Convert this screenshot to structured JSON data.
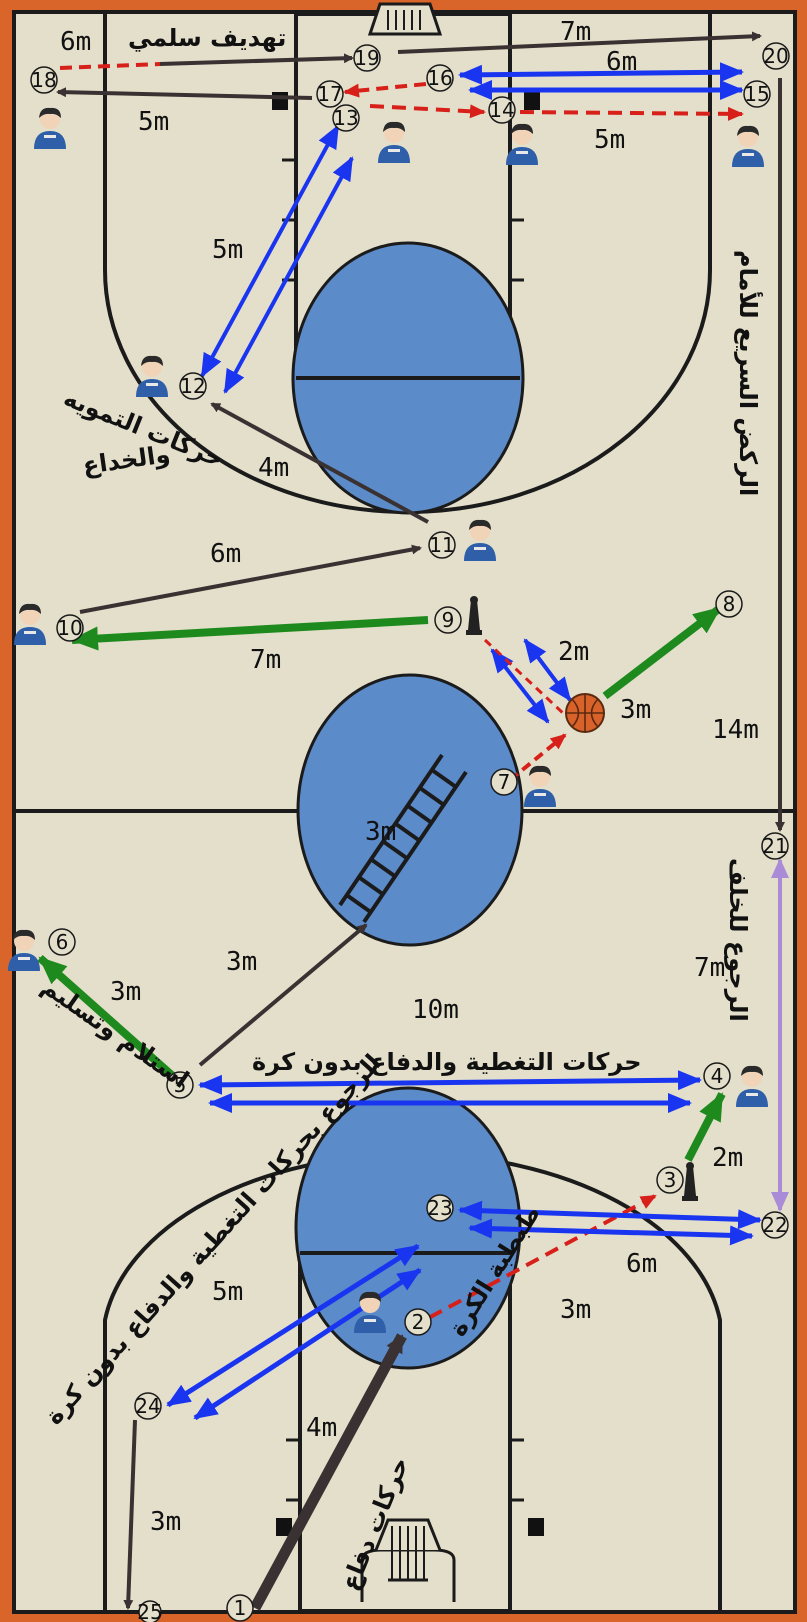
{
  "colors": {
    "frame": "#d9652a",
    "court": "#e3dfcb",
    "line": "#1b1b1b",
    "key": "#5b8bc9",
    "black_arrow": "#3a3232",
    "blue_arrow": "#1a35f0",
    "green_arrow": "#1e8a1e",
    "red_dash": "#d8201a",
    "purple_arrow": "#a98bd8",
    "player_shirt": "#2e5fa8"
  },
  "stations": [
    "1",
    "2",
    "3",
    "4",
    "5",
    "6",
    "7",
    "8",
    "9",
    "10",
    "11",
    "12",
    "13",
    "14",
    "15",
    "16",
    "17",
    "18",
    "19",
    "20",
    "21",
    "22",
    "23",
    "24",
    "25"
  ],
  "distances": {
    "d_18_19": "6m",
    "d_17_18": "5m",
    "d_19_20": "7m",
    "d_15_16": "6m",
    "d_14_15": "5m",
    "d_12_13": "5m",
    "d_11_12": "4m",
    "d_10_11": "6m",
    "d_9_10": "7m",
    "d_ball_9": "2m",
    "d_ball_8": "3m",
    "d_20_21": "14m",
    "d_ladder": "3m",
    "d_5_ladder": "3m",
    "d_5_6": "3m",
    "d_4_5": "10m",
    "d_21_22": "7m",
    "d_3_4": "2m",
    "d_22_23": "6m",
    "d_2_3": "3m",
    "d_23_24": "5m",
    "d_1_2": "4m",
    "d_24_25": "3m"
  },
  "arabic_labels": {
    "passive_shot": "تهديف سلمي",
    "feint_moves": "حركات التمويه",
    "and_deception": "والخداع",
    "fast_sprint": "الركض السريع للأمام",
    "receive_pass": "استلام وتسليم",
    "cover_defense": "حركات التغطية والدفاع بدون كرة",
    "run_back": "الرجوع للخلف",
    "return_cover": "الرجوع بحركات التغطية والدفاع بدون كرة",
    "ball_bounce": "طبطبة الكرة",
    "defense_moves": "حركات دفاع"
  }
}
